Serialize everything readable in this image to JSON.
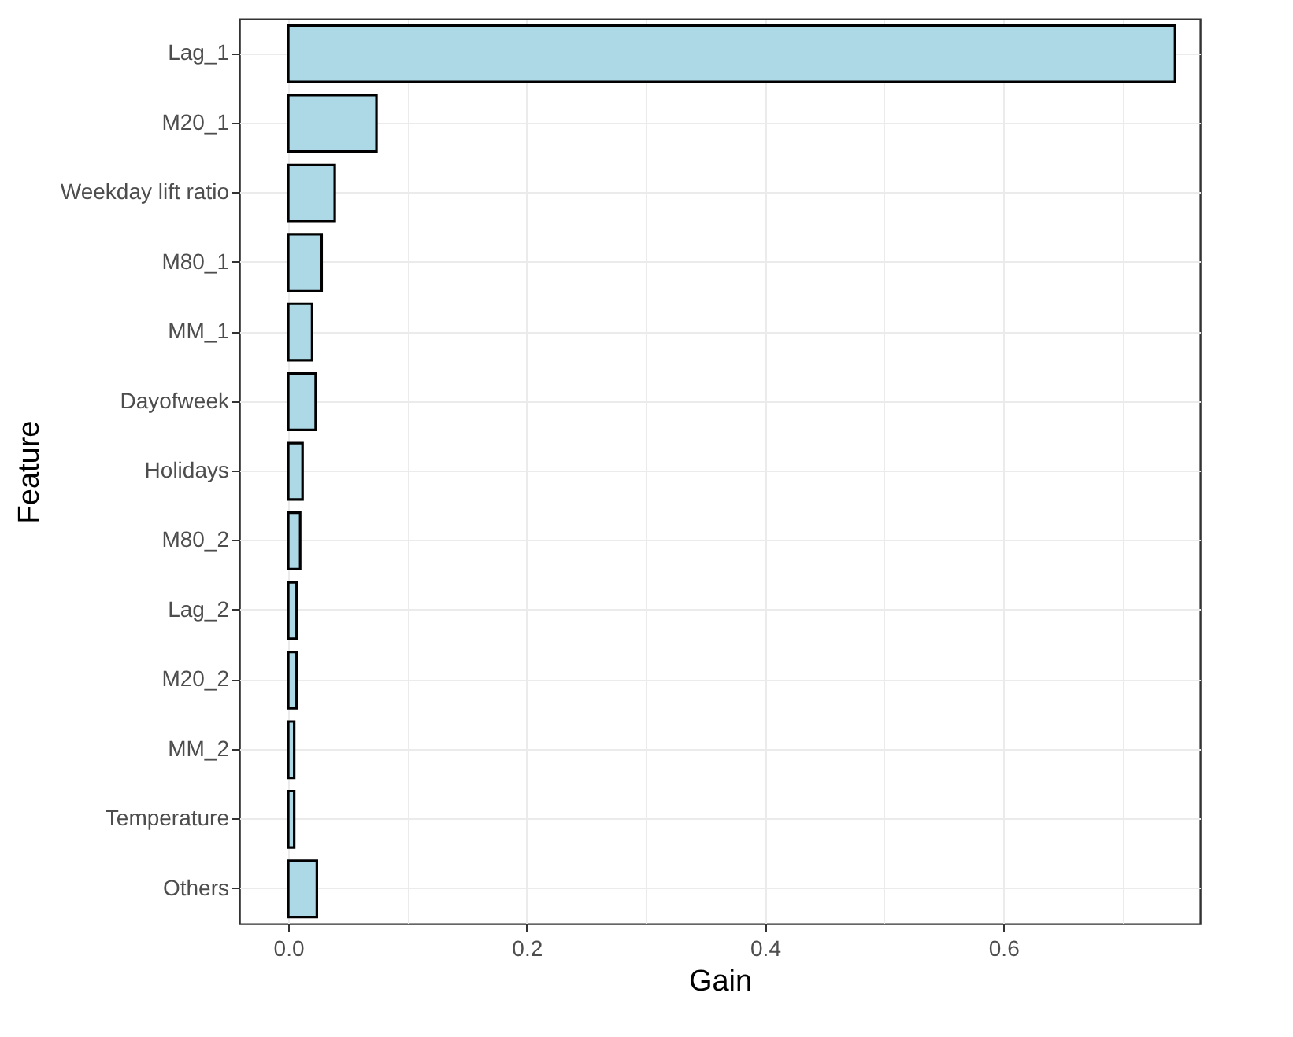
{
  "chart_data": {
    "type": "bar",
    "orientation": "horizontal",
    "xlabel": "Gain",
    "ylabel": "Feature",
    "categories": [
      "Lag_1",
      "M20_1",
      "Weekday lift ratio",
      "M80_1",
      "MM_1",
      "Dayofweek",
      "Holidays",
      "M80_2",
      "Lag_2",
      "M20_2",
      "MM_2",
      "Temperature",
      "Others"
    ],
    "values": [
      0.744,
      0.074,
      0.039,
      0.028,
      0.02,
      0.023,
      0.012,
      0.01,
      0.007,
      0.007,
      0.005,
      0.005,
      0.024
    ],
    "color": "#add8e6",
    "xlim": [
      -0.041,
      0.765
    ],
    "xticks": [
      {
        "value": 0,
        "label": "0.0"
      },
      {
        "value": 0.1,
        "label": null
      },
      0.2,
      {
        "value": 0.3,
        "label": null
      },
      0.4,
      {
        "value": 0.5,
        "label": null
      },
      0.6,
      {
        "value": 0.7,
        "label": null
      }
    ],
    "grid": true
  }
}
